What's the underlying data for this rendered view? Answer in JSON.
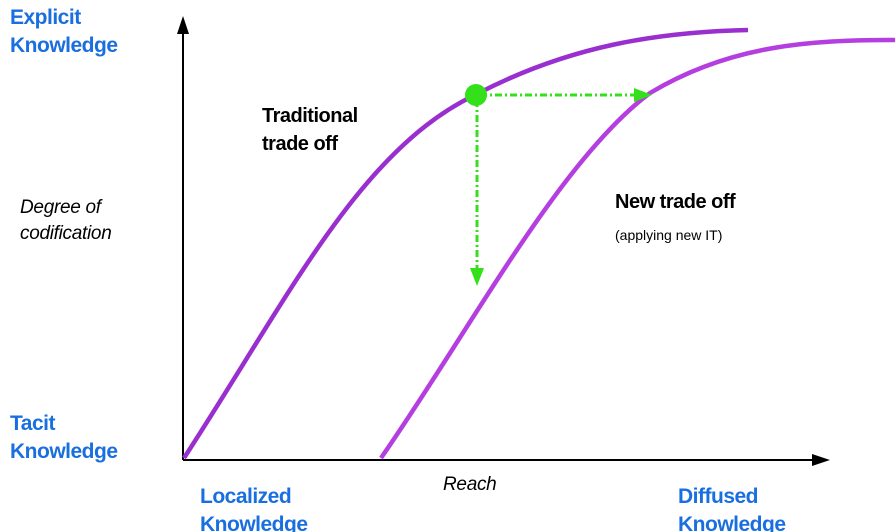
{
  "colors": {
    "curve": "#9a2fd0",
    "curve_new": "#b53ee0",
    "arrow": "#33e01a",
    "axis": "#000000",
    "label_blue": "#1a6fe0"
  },
  "labels": {
    "explicit": [
      "Explicit",
      "Knowledge"
    ],
    "tacit": [
      "Tacit",
      "Knowledge"
    ],
    "localized": [
      "Localized",
      "Knowledge"
    ],
    "diffused": [
      "Diffused",
      "Knowledge"
    ],
    "degree": [
      "Degree of",
      "codification"
    ],
    "reach": "Reach",
    "traditional": [
      "Traditional",
      "trade off"
    ],
    "new_trade": "New trade off",
    "new_trade_sub": "(applying new IT)"
  },
  "curves": [
    {
      "name": "traditional-trade-off-curve"
    },
    {
      "name": "new-trade-off-curve"
    }
  ]
}
